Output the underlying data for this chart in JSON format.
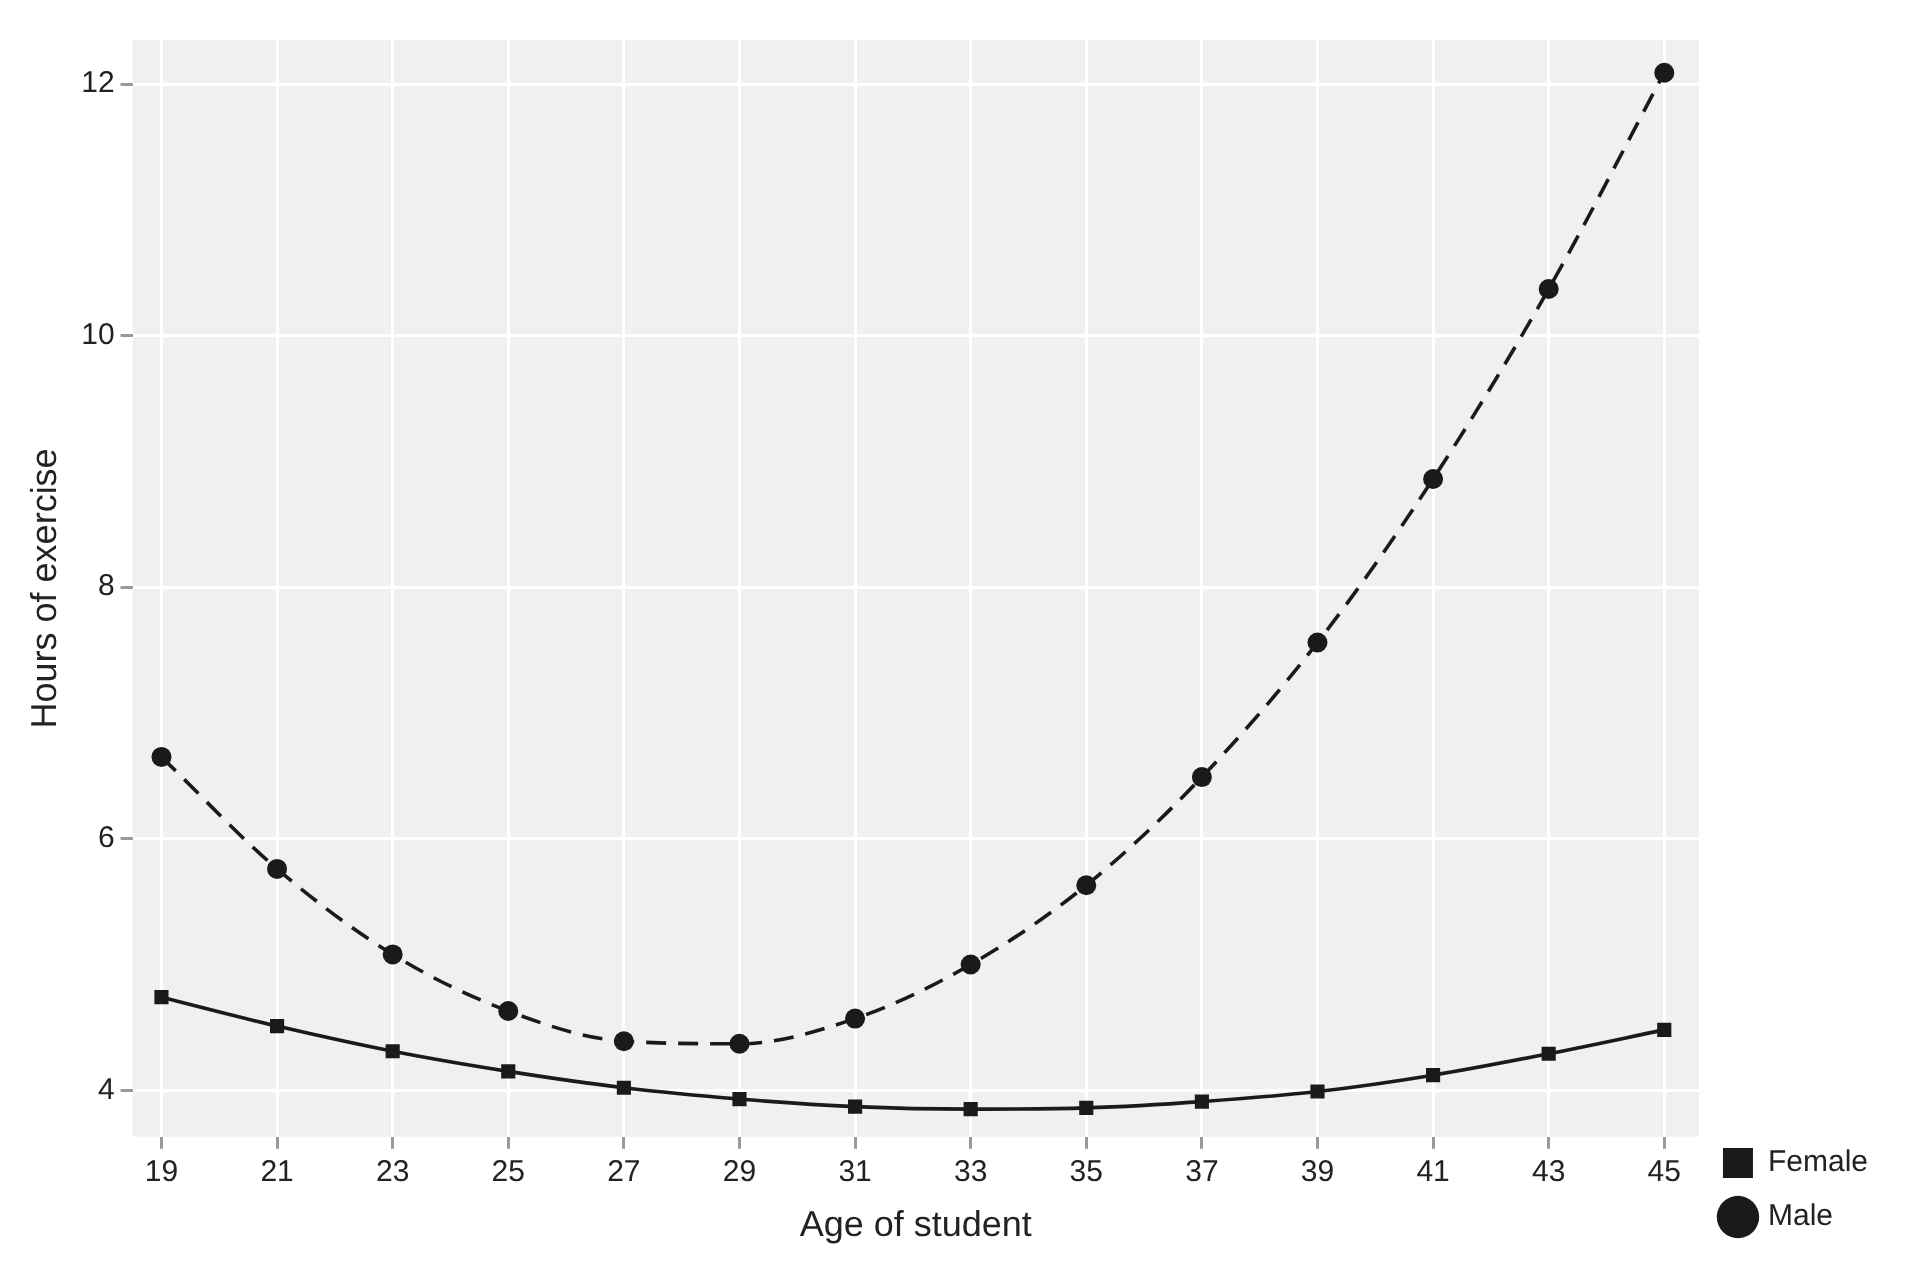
{
  "chart_data": {
    "type": "line",
    "xlabel": "Age of student",
    "ylabel": "Hours of exercise",
    "x": [
      19,
      21,
      23,
      25,
      27,
      29,
      31,
      33,
      35,
      37,
      39,
      41,
      43,
      45
    ],
    "series": [
      {
        "name": "Female",
        "color": "#1a1a1a",
        "marker": "square",
        "line_style": "solid",
        "values": [
          4.74,
          4.51,
          4.31,
          4.15,
          4.02,
          3.93,
          3.87,
          3.85,
          3.86,
          3.91,
          3.99,
          4.12,
          4.29,
          4.48
        ]
      },
      {
        "name": "Male",
        "color": "#1a1a1a",
        "marker": "circle",
        "line_style": "dashed",
        "values": [
          6.65,
          5.76,
          5.08,
          4.63,
          4.39,
          4.37,
          4.57,
          5.0,
          5.63,
          6.49,
          7.56,
          8.86,
          10.37,
          12.09
        ]
      }
    ],
    "xlim": [
      18.5,
      45.6
    ],
    "xticks": [
      19,
      21,
      23,
      25,
      27,
      29,
      31,
      33,
      35,
      37,
      39,
      41,
      43,
      45
    ],
    "ylim": [
      3.63,
      12.35
    ],
    "yticks": [
      4,
      6,
      8,
      10,
      12
    ],
    "grid": true,
    "legend": "right"
  }
}
